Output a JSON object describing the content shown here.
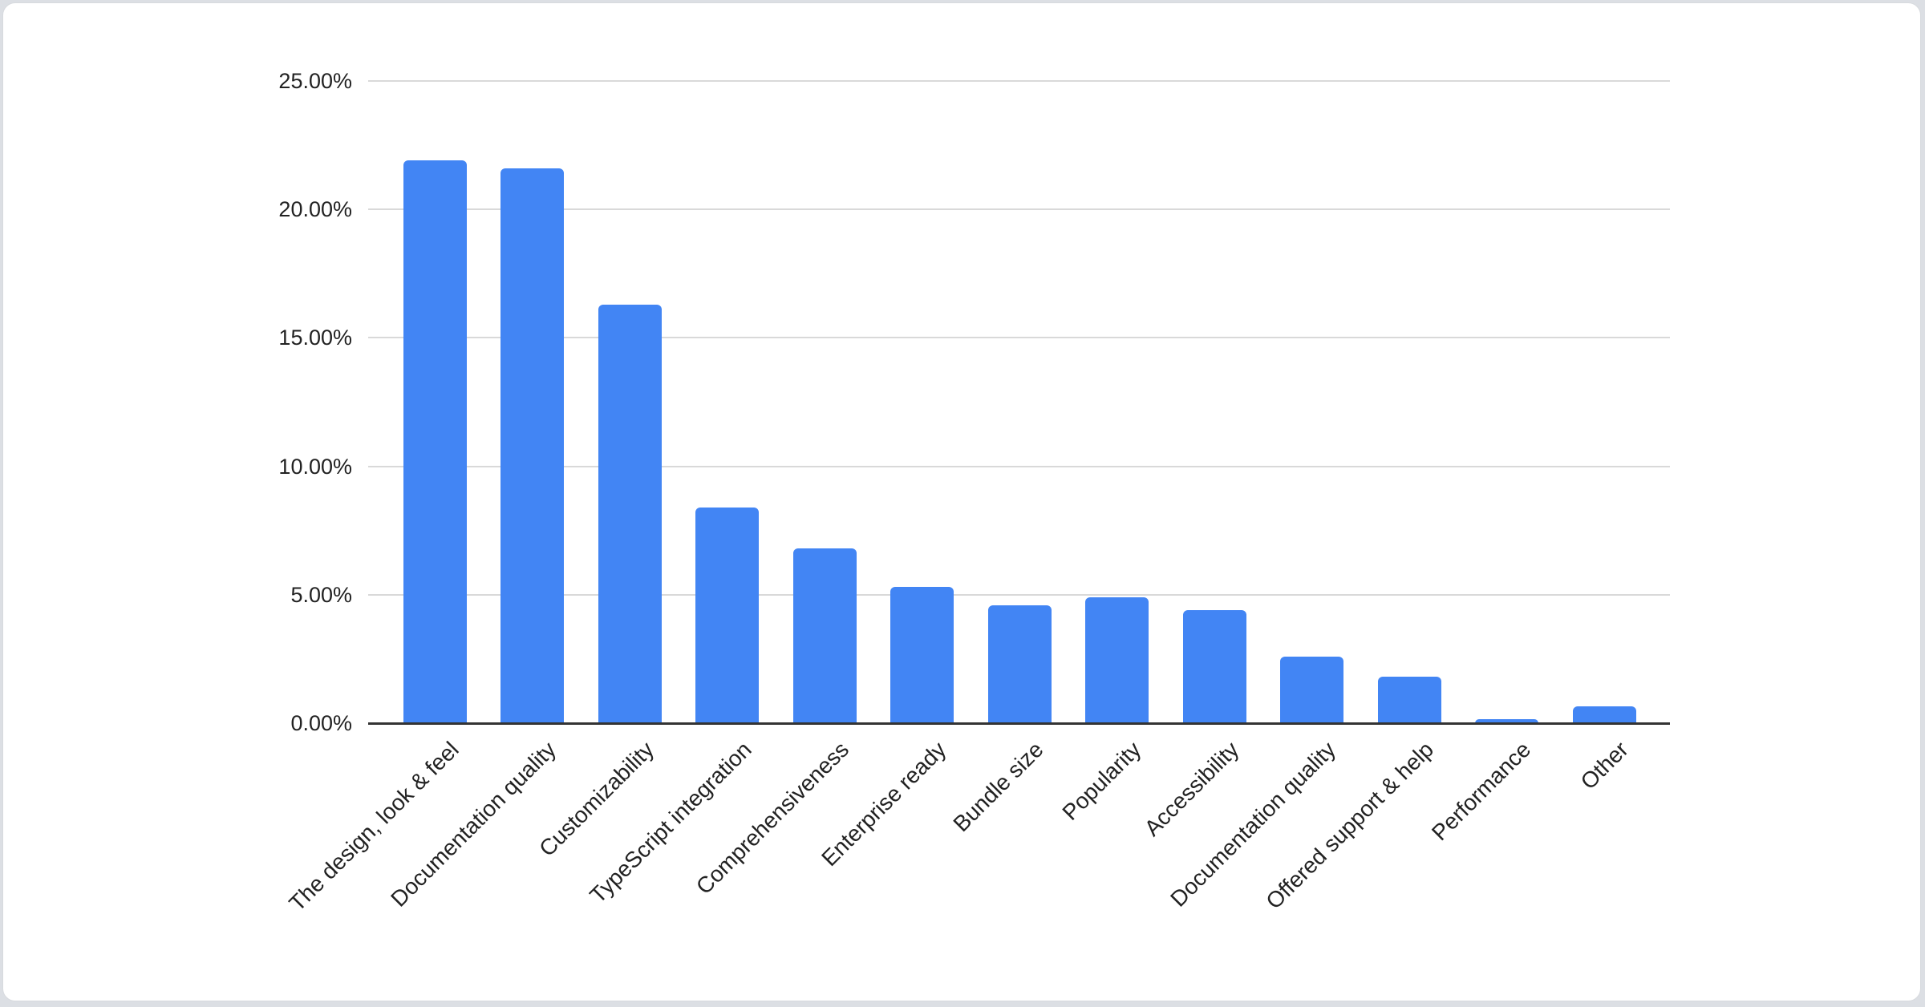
{
  "chart_data": {
    "type": "bar",
    "title": "",
    "xlabel": "",
    "ylabel": "",
    "categories": [
      "The design, look & feel",
      "Documentation quality",
      "Customizability",
      "TypeScript integration",
      "Comprehensiveness",
      "Enterprise ready",
      "Bundle size",
      "Popularity",
      "Accessibility",
      "Documentation quality",
      "Offered support & help",
      "Performance",
      "Other"
    ],
    "values": [
      21.9,
      21.6,
      16.3,
      8.4,
      6.8,
      5.3,
      4.6,
      4.9,
      4.4,
      2.6,
      1.8,
      0.15,
      0.65
    ],
    "value_unit": "%",
    "ylim": [
      0,
      25
    ],
    "ytick_values": [
      0,
      5,
      10,
      15,
      20,
      25
    ],
    "yticks": [
      "0.00%",
      "5.00%",
      "10.00%",
      "15.00%",
      "20.00%",
      "25.00%"
    ],
    "grid": true,
    "legend": "none",
    "colors": {
      "bar": "#4285f4",
      "gridline": "#d9d9d9",
      "axis_line": "#333333",
      "label_text": "#222222",
      "card_background": "#ffffff",
      "card_border": "#d7dade",
      "page_background": "#dcdfe4"
    }
  }
}
